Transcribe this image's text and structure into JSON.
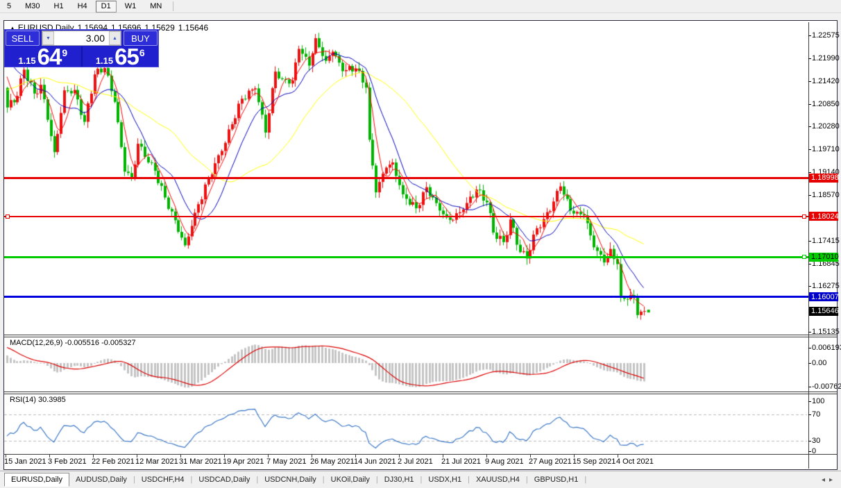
{
  "toolbar": {
    "timeframes": [
      {
        "label": "5",
        "active": false
      },
      {
        "label": "M30",
        "active": false
      },
      {
        "label": "H1",
        "active": false
      },
      {
        "label": "H4",
        "active": false
      },
      {
        "label": "D1",
        "active": true
      },
      {
        "label": "W1",
        "active": false
      },
      {
        "label": "MN",
        "active": false
      }
    ]
  },
  "window": {
    "title": {
      "marker": "▲",
      "symbol": "EURUSD,Daily",
      "open": "1.15694",
      "high": "1.15696",
      "low": "1.15629",
      "close": "1.15646"
    },
    "trade_panel": {
      "sell_label": "SELL",
      "buy_label": "BUY",
      "volume": "3.00",
      "down_arrow": "▼",
      "up_arrow": "▲",
      "sell_price_head": "1.15",
      "sell_price_big": "64",
      "sell_price_sup": "9",
      "buy_price_head": "1.15",
      "buy_price_big": "65",
      "buy_price_sup": "6"
    }
  },
  "main_chart": {
    "scale": {
      "price_top": 1.229,
      "price_bottom": 1.1506
    },
    "price_axis_ticks": [
      "1.22575",
      "1.21990",
      "1.21420",
      "1.20850",
      "1.20280",
      "1.19710",
      "1.19140",
      "1.18570",
      "1.17415",
      "1.16845",
      "1.16275",
      "1.15135"
    ],
    "hlines": [
      {
        "price": 1.18998,
        "label": "1.18998",
        "color": "#e60000",
        "label_bg": "#e60000",
        "label_fg": "#ffffff",
        "thickness": 3,
        "handles": []
      },
      {
        "price": 1.18024,
        "label": "1.18024",
        "color": "#e60000",
        "label_bg": "#e60000",
        "label_fg": "#ffffff",
        "thickness": 2,
        "handles": [
          "left",
          "right"
        ]
      },
      {
        "price": 1.1701,
        "label": "1.17010",
        "color": "#00cc00",
        "label_bg": "#00cc00",
        "label_fg": "#000000",
        "thickness": 3,
        "handles": [
          "right"
        ]
      },
      {
        "price": 1.16007,
        "label": "1.16007",
        "color": "#0000dd",
        "label_bg": "#0000cc",
        "label_fg": "#ffffff",
        "thickness": 3,
        "handles": []
      }
    ],
    "last_price": {
      "label": "1.15646",
      "price": 1.15646,
      "label_bg": "#000000",
      "label_fg": "#ffffff"
    },
    "colors": {
      "bull": "#ee1111",
      "bear": "#00b400",
      "ma_fast": "#ff0000",
      "ma_mid": "#0000bb",
      "ma_slow": "#ffff00"
    },
    "ma_periods": {
      "fast": 5,
      "mid": 12,
      "slow": 34
    },
    "candle_anchors": [
      [
        -40,
        1.193
      ],
      [
        -25,
        1.205
      ],
      [
        -12,
        1.218
      ],
      [
        -7,
        1.225
      ],
      [
        -4,
        1.2215
      ],
      [
        -1,
        1.2125
      ],
      [
        0,
        1.2076
      ],
      [
        3,
        1.2105
      ],
      [
        5,
        1.2171
      ],
      [
        8,
        1.2111
      ],
      [
        10,
        1.2133
      ],
      [
        12,
        1.2045
      ],
      [
        14,
        1.1964
      ],
      [
        17,
        1.2119
      ],
      [
        20,
        1.212
      ],
      [
        23,
        1.204
      ],
      [
        26,
        1.2159
      ],
      [
        29,
        1.2175
      ],
      [
        32,
        1.209
      ],
      [
        35,
        1.1915
      ],
      [
        37,
        1.19
      ],
      [
        39,
        1.1985
      ],
      [
        44,
        1.1917
      ],
      [
        47,
        1.185
      ],
      [
        50,
        1.1793
      ],
      [
        53,
        1.173
      ],
      [
        56,
        1.1812
      ],
      [
        60,
        1.1899
      ],
      [
        64,
        1.1967
      ],
      [
        67,
        1.2034
      ],
      [
        70,
        1.2098
      ],
      [
        74,
        1.2124
      ],
      [
        77,
        1.2013
      ],
      [
        80,
        1.2166
      ],
      [
        82,
        1.2147
      ],
      [
        85,
        1.2144
      ],
      [
        87,
        1.2223
      ],
      [
        90,
        1.2181
      ],
      [
        92,
        1.225
      ],
      [
        95,
        1.2193
      ],
      [
        97,
        1.2216
      ],
      [
        100,
        1.2167
      ],
      [
        104,
        1.2174
      ],
      [
        107,
        1.2126
      ],
      [
        108,
        1.1995
      ],
      [
        110,
        1.1863
      ],
      [
        113,
        1.1925
      ],
      [
        115,
        1.1938
      ],
      [
        118,
        1.1858
      ],
      [
        122,
        1.1823
      ],
      [
        125,
        1.1876
      ],
      [
        128,
        1.1836
      ],
      [
        131,
        1.18
      ],
      [
        133,
        1.1794
      ],
      [
        136,
        1.182
      ],
      [
        140,
        1.187
      ],
      [
        143,
        1.1838
      ],
      [
        145,
        1.1762
      ],
      [
        148,
        1.1738
      ],
      [
        150,
        1.1795
      ],
      [
        153,
        1.1713
      ],
      [
        155,
        1.1697
      ],
      [
        158,
        1.1773
      ],
      [
        160,
        1.1796
      ],
      [
        163,
        1.184
      ],
      [
        165,
        1.1878
      ],
      [
        168,
        1.1817
      ],
      [
        170,
        1.1814
      ],
      [
        172,
        1.1805
      ],
      [
        175,
        1.1725
      ],
      [
        178,
        1.1687
      ],
      [
        180,
        1.1721
      ],
      [
        182,
        1.1683
      ],
      [
        183,
        1.1599
      ],
      [
        185,
        1.1595
      ],
      [
        187,
        1.1599
      ],
      [
        188,
        1.1555
      ],
      [
        190,
        1.1565
      ]
    ]
  },
  "macd_panel": {
    "label": "MACD(12,26,9) -0.005516 -0.005327",
    "axis_ticks": [
      "0.006193",
      "0.00",
      "-0.007621"
    ],
    "histogram_color": "#c4c4c4",
    "signal_color": "#dd0000",
    "fast": 12,
    "slow": 26,
    "signal": 9
  },
  "rsi_panel": {
    "label": "RSI(14) 30.3985",
    "axis_ticks": [
      "100",
      "70",
      "30",
      "0"
    ],
    "levels": [
      70,
      30
    ],
    "line_color": "#3c78c8",
    "period": 14
  },
  "date_axis": {
    "labels": [
      "15 Jan 2021",
      "3 Feb 2021",
      "22 Feb 2021",
      "12 Mar 2021",
      "31 Mar 2021",
      "19 Apr 2021",
      "7 May 2021",
      "26 May 2021",
      "14 Jun 2021",
      "2 Jul 2021",
      "21 Jul 2021",
      "9 Aug 2021",
      "27 Aug 2021",
      "15 Sep 2021",
      "4 Oct 2021"
    ]
  },
  "tab_bar": {
    "tabs": [
      {
        "label": "EURUSD,Daily",
        "active": true
      },
      {
        "label": "AUDUSD,Daily",
        "active": false
      },
      {
        "label": "USDCHF,H4",
        "active": false
      },
      {
        "label": "USDCAD,Daily",
        "active": false
      },
      {
        "label": "USDCNH,Daily",
        "active": false
      },
      {
        "label": "UKOil,Daily",
        "active": false
      },
      {
        "label": "DJ30,H1",
        "active": false
      },
      {
        "label": "USDX,H1",
        "active": false
      },
      {
        "label": "XAUUSD,H4",
        "active": false
      },
      {
        "label": "GBPUSD,H1",
        "active": false
      }
    ],
    "nav_left": "◂",
    "nav_right": "▸"
  }
}
